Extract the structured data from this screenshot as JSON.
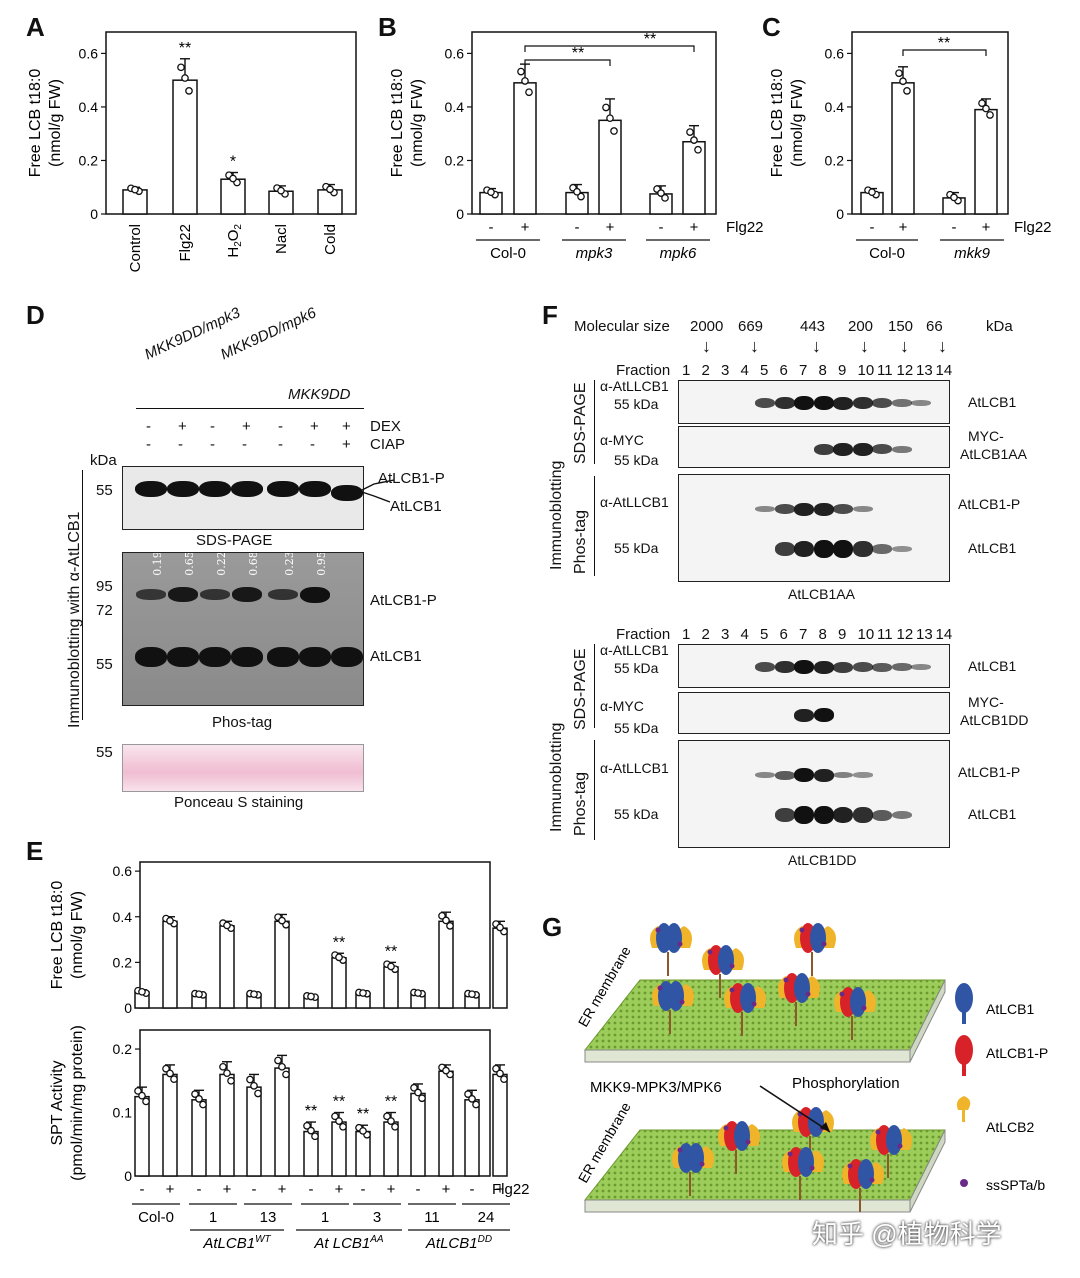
{
  "panels": {
    "a": "A",
    "b": "B",
    "c": "C",
    "d": "D",
    "e": "E",
    "f": "F",
    "g": "G"
  },
  "chart_data": [
    {
      "id": "A",
      "type": "bar",
      "ylabel_line1": "Free LCB t18:0",
      "ylabel_line2": "(nmol/g FW)",
      "yticks": [
        "0",
        "0.2",
        "0.4",
        "0.6"
      ],
      "ylim": [
        0,
        0.68
      ],
      "categories": [
        "Control",
        "Flg22",
        "H2O2",
        "Nacl",
        "Cold"
      ],
      "values": [
        0.09,
        0.5,
        0.13,
        0.085,
        0.09
      ],
      "errors": [
        0.01,
        0.08,
        0.025,
        0.02,
        0.02
      ],
      "significance": [
        "",
        "**",
        "*",
        "",
        ""
      ]
    },
    {
      "id": "B",
      "type": "bar",
      "ylabel_line1": "Free LCB t18:0",
      "ylabel_line2": "(nmol/g FW)",
      "yticks": [
        "0",
        "0.2",
        "0.4",
        "0.6"
      ],
      "ylim": [
        0,
        0.68
      ],
      "treatment_label": "Flg22",
      "treatment_marks": [
        "-",
        "+",
        "-",
        "+",
        "-",
        "+"
      ],
      "genotypes": [
        "Col-0",
        "mpk3",
        "mpk6"
      ],
      "values": [
        0.08,
        0.49,
        0.08,
        0.35,
        0.075,
        0.27
      ],
      "errors": [
        0.015,
        0.07,
        0.03,
        0.08,
        0.03,
        0.06
      ],
      "brackets": [
        "**",
        "**"
      ]
    },
    {
      "id": "C",
      "type": "bar",
      "ylabel_line1": "Free LCB t18:0",
      "ylabel_line2": "(nmol/g FW)",
      "yticks": [
        "0",
        "0.2",
        "0.4",
        "0.6"
      ],
      "ylim": [
        0,
        0.68
      ],
      "treatment_label": "Flg22",
      "treatment_marks": [
        "-",
        "+",
        "-",
        "+"
      ],
      "genotypes": [
        "Col-0",
        "mkk9"
      ],
      "values": [
        0.08,
        0.49,
        0.06,
        0.39
      ],
      "errors": [
        0.015,
        0.06,
        0.02,
        0.04
      ],
      "brackets": [
        "**"
      ]
    },
    {
      "id": "E-top",
      "type": "bar",
      "ylabel_line1": "Free LCB t18:0",
      "ylabel_line2": "(nmol/g FW)",
      "yticks": [
        "0",
        "0.2",
        "0.4",
        "0.6"
      ],
      "ylim": [
        0,
        0.64
      ],
      "values": [
        0.07,
        0.38,
        0.06,
        0.36,
        0.06,
        0.38,
        0.05,
        0.22,
        0.065,
        0.18,
        0.065,
        0.38,
        0.06,
        0.35
      ],
      "errors": [
        0.01,
        0.02,
        0.005,
        0.02,
        0.005,
        0.03,
        0.005,
        0.02,
        0.005,
        0.02,
        0.005,
        0.04,
        0.005,
        0.03
      ],
      "significance": [
        "",
        "",
        "",
        "",
        "",
        "",
        "",
        "**",
        "",
        "**",
        "",
        "",
        "",
        ""
      ]
    },
    {
      "id": "E-bottom",
      "type": "bar",
      "ylabel_line1": "SPT Activity",
      "ylabel_line2": "(pmol/min/mg protein)",
      "yticks": [
        "0",
        "0.1",
        "0.2"
      ],
      "ylim": [
        0,
        0.23
      ],
      "treatment_label": "Flg22",
      "treatment_marks": [
        "-",
        "+",
        "-",
        "+",
        "-",
        "+",
        "-",
        "+",
        "-",
        "+",
        "-",
        "+",
        "-",
        "+"
      ],
      "lines": [
        "Col-0",
        "1",
        "13",
        "1",
        "3",
        "11",
        "24"
      ],
      "groups": [
        "AtLCB1WT",
        "At LCB1AA",
        "AtLCB1DD"
      ],
      "values": [
        0.125,
        0.16,
        0.12,
        0.16,
        0.14,
        0.17,
        0.07,
        0.085,
        0.07,
        0.085,
        0.13,
        0.165,
        0.12,
        0.16
      ],
      "errors": [
        0.015,
        0.015,
        0.015,
        0.02,
        0.02,
        0.02,
        0.015,
        0.015,
        0.01,
        0.015,
        0.015,
        0.01,
        0.015,
        0.015
      ],
      "significance": [
        "",
        "",
        "",
        "",
        "",
        "",
        "**",
        "**",
        "**",
        "**",
        "",
        "",
        "",
        ""
      ]
    }
  ],
  "panel_d": {
    "genotypes": [
      "MKK9DD/mpk3",
      "MKK9DD/mpk6",
      "MKK9DD"
    ],
    "dex_label": "DEX",
    "ciap_label": "CIAP",
    "dex_marks": [
      "-",
      "+",
      "-",
      "+",
      "-",
      "+",
      "+"
    ],
    "ciap_marks": [
      "-",
      "-",
      "-",
      "-",
      "-",
      "-",
      "+"
    ],
    "kda": "kDa",
    "side_label": "Immunoblotting with α-AtLCB1",
    "sds": {
      "marker": "55",
      "bands": [
        "AtLCB1-P",
        "AtLCB1"
      ],
      "caption": "SDS-PAGE"
    },
    "phos": {
      "markers": [
        "95",
        "72",
        "55"
      ],
      "ratios": [
        "0.19",
        "0.65",
        "0.22",
        "0.68",
        "0.23",
        "0.95"
      ],
      "bands": [
        "AtLCB1-P",
        "AtLCB1"
      ],
      "caption": "Phos-tag"
    },
    "ponceau": {
      "marker": "55",
      "caption": "Ponceau S staining"
    }
  },
  "panel_f": {
    "mol_label": "Molecular size",
    "kda": "kDa",
    "sizes": [
      "2000",
      "669",
      "443",
      "200",
      "150",
      "66"
    ],
    "fraction_label": "Fraction",
    "fractions": [
      "1",
      "2",
      "3",
      "4",
      "5",
      "6",
      "7",
      "8",
      "9",
      "10",
      "11",
      "12",
      "13",
      "14"
    ],
    "immunoblotting": "Immunoblotting",
    "sds_page": "SDS-PAGE",
    "phos_tag": "Phos-tag",
    "antibody_lcb1": "α-AtLLCB1",
    "antibody_myc": "α-MYC",
    "kda55": "55 kDa",
    "kda55b": "55 kDa",
    "kda55c": "55 kDa",
    "kda55d": "55 kDa",
    "kda55e": "55 kDa",
    "kda55f": "55 kDa",
    "band_lcb1": "AtLCB1",
    "band_lcb1p": "AtLCB1-P",
    "myc_line1": "MYC-",
    "myc_aa": "AtLCB1AA",
    "myc_dd": "AtLCB1DD",
    "caption_aa": "AtLCB1AA",
    "caption_dd": "AtLCB1DD"
  },
  "panel_g": {
    "membrane": "ER membrane",
    "kinase": "MKK9-MPK3/MPK6",
    "process": "Phosphorylation",
    "legend": [
      "AtLCB1",
      "AtLCB1-P",
      "AtLCB2",
      "ssSPTa/b"
    ]
  },
  "watermark": "知乎 @植物科学",
  "colors": {
    "lcb1": "#2f55a4",
    "lcb1p": "#d8222a",
    "lcb2": "#f0b42a",
    "ssspt": "#6a2a8a",
    "membrane": "#8bc34a"
  }
}
